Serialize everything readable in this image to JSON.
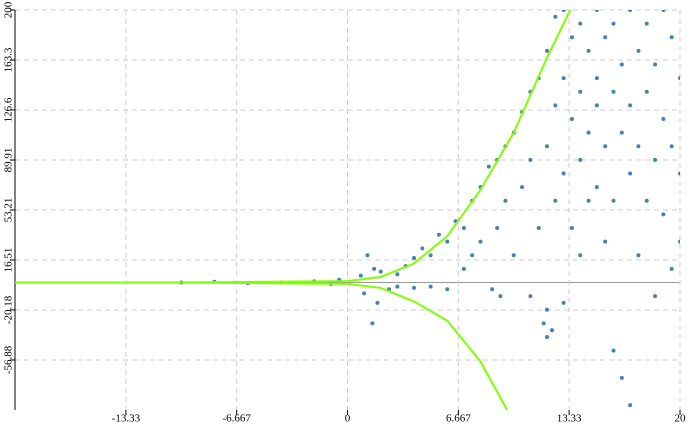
{
  "chart_data": {
    "type": "scatter",
    "xlim": [
      -20,
      20
    ],
    "ylim": [
      -93.6,
      200
    ],
    "xticks": [
      -13.33,
      -6.667,
      0,
      6.667,
      13.33,
      20
    ],
    "yticks": [
      -56.88,
      -20.18,
      16.51,
      53.21,
      89.91,
      126.6,
      163.3,
      200
    ],
    "grid": true,
    "series": [
      {
        "color": "#4682b4",
        "x": [
          -10,
          -8,
          -6,
          -4,
          -2,
          -1,
          -0.5,
          0.8,
          1,
          1.2,
          1.5,
          1.6,
          1.8,
          2,
          2.5,
          3,
          3,
          3.5,
          4,
          4,
          4.5,
          5,
          5,
          5.5,
          6,
          6,
          6.5,
          7,
          7,
          7.5,
          7.5,
          8,
          8,
          8.5,
          8.7,
          9,
          9,
          9.2,
          9.5,
          9.5,
          10,
          10,
          10.5,
          10.5,
          11,
          11,
          11,
          11.5,
          11.5,
          11.8,
          12,
          12,
          12,
          12,
          12.3,
          12.5,
          12.5,
          12.5,
          13,
          13,
          13,
          13,
          13.5,
          13.5,
          13.5,
          14,
          14,
          14,
          14,
          14.5,
          14.5,
          14.5,
          15,
          15,
          15,
          15,
          15.5,
          15.5,
          15.5,
          16,
          16,
          16,
          16,
          16.5,
          16.5,
          16.5,
          17,
          17,
          17,
          17,
          17.5,
          17.5,
          17.5,
          18,
          18,
          18,
          18.5,
          18.5,
          18.5,
          19,
          19,
          19,
          19.5,
          19.5,
          19.5,
          20,
          20,
          20
        ],
        "values": [
          0,
          0.5,
          -0.5,
          0,
          0.8,
          -1,
          2,
          5,
          -8,
          20,
          -30,
          10,
          -15,
          8,
          -5,
          6,
          -3,
          12,
          18,
          -4,
          25,
          20,
          -3,
          35,
          30,
          -5,
          45,
          40,
          10,
          60,
          20,
          70,
          30,
          85,
          -5,
          90,
          40,
          -10,
          100,
          60,
          110,
          20,
          125,
          70,
          140,
          90,
          -10,
          150,
          40,
          -30,
          170,
          100,
          -20,
          -40,
          -35,
          195,
          130,
          60,
          200,
          150,
          80,
          -15,
          180,
          120,
          40,
          190,
          140,
          90,
          20,
          170,
          110,
          60,
          200,
          150,
          130,
          70,
          180,
          100,
          30,
          190,
          140,
          60,
          -50,
          160,
          110,
          -70,
          200,
          130,
          80,
          -90,
          170,
          100,
          20,
          190,
          140,
          60,
          160,
          90,
          -10,
          200,
          120,
          50,
          180,
          100,
          10,
          150,
          80,
          30
        ]
      },
      {
        "color": "#7fff00",
        "x": [
          -20,
          -10,
          0,
          2,
          4,
          6,
          8,
          10,
          12,
          13.4
        ],
        "values": [
          0,
          0,
          1,
          4,
          14,
          34,
          68,
          110,
          165,
          200
        ]
      },
      {
        "color": "#7fff00",
        "x": [
          -20,
          -10,
          0,
          2,
          4,
          6,
          8,
          9.6
        ],
        "values": [
          0,
          0,
          -1,
          -4,
          -14,
          -28,
          -58,
          -93.6
        ]
      }
    ]
  }
}
